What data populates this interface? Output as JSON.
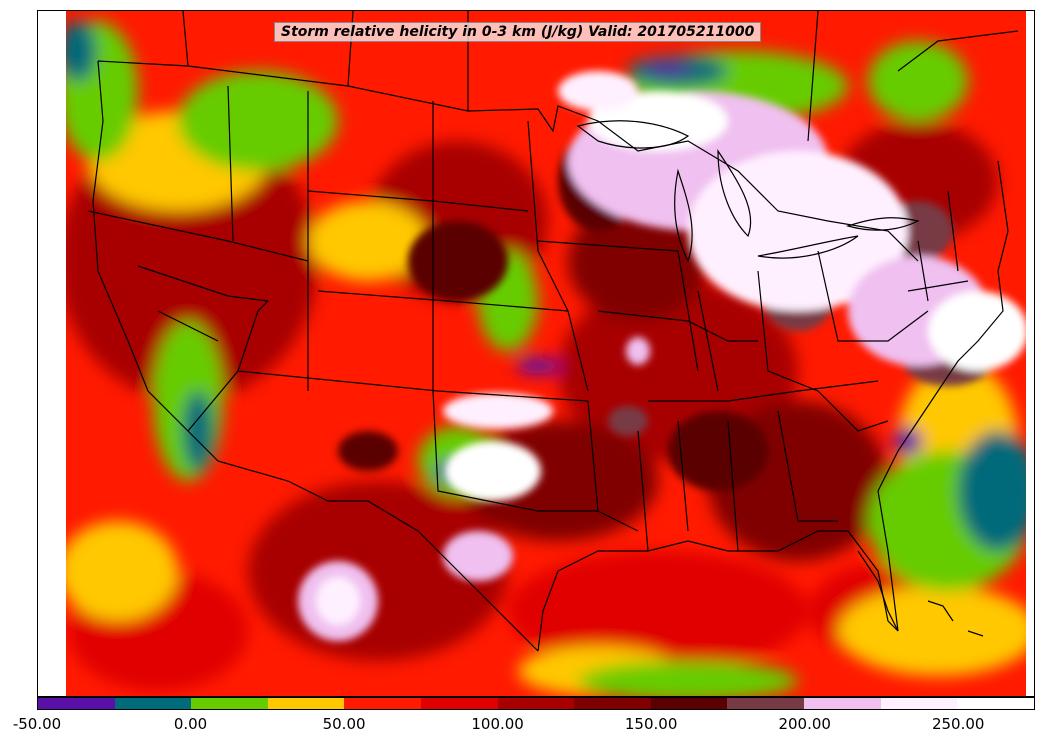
{
  "map": {
    "title": "Storm relative helicity in 0-3 km (J/kg) Valid: 201705211000",
    "field": "Storm relative helicity",
    "region": "Continental United States",
    "units": "J/kg"
  },
  "colorbar": {
    "min": -50,
    "max": 275,
    "step": 25,
    "colors": [
      "#5a10a8",
      "#006b7a",
      "#66cc00",
      "#ffc800",
      "#ff1a00",
      "#e00000",
      "#a80000",
      "#800000",
      "#5a0000",
      "#783a44",
      "#f0c0f0",
      "#fff0ff",
      "#ffffff"
    ],
    "tick_labels": [
      "-50.00",
      "0.00",
      "50.00",
      "100.00",
      "150.00",
      "200.00",
      "250.00"
    ],
    "tick_values": [
      -50,
      0,
      50,
      100,
      150,
      200,
      250
    ]
  }
}
